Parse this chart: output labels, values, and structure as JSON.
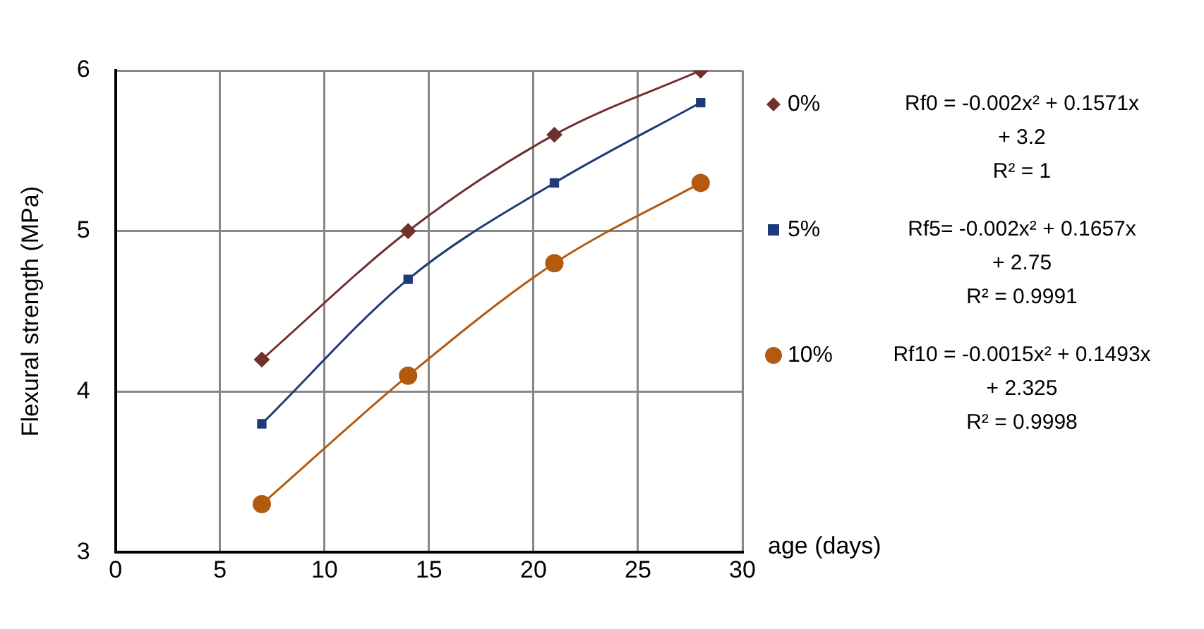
{
  "chart_data": {
    "type": "line",
    "xlabel": "age (days)",
    "ylabel": "Flexural strength (MPa)",
    "xlim": [
      0,
      30
    ],
    "xticks": [
      0,
      5,
      10,
      15,
      20,
      25,
      30
    ],
    "ylim": [
      3,
      6
    ],
    "yticks": [
      3,
      4,
      5,
      6
    ],
    "grid": true,
    "legend": "right",
    "series": [
      {
        "name": "0%",
        "color": "#70302e",
        "marker": "diamond",
        "x": [
          7,
          14,
          21,
          28
        ],
        "values": [
          4.2,
          5.0,
          5.6,
          6.0
        ]
      },
      {
        "name": "5%",
        "color": "#1f3a78",
        "marker": "square",
        "x": [
          7,
          14,
          21,
          28
        ],
        "values": [
          3.8,
          4.7,
          5.3,
          5.8
        ]
      },
      {
        "name": "10%",
        "color": "#b25a10",
        "marker": "circle",
        "x": [
          7,
          14,
          21,
          28
        ],
        "values": [
          3.3,
          4.1,
          4.8,
          5.3
        ]
      }
    ],
    "annotations": [
      "Rf0 = -0.002x² + 0.1571x + 3.2",
      "R² = 1",
      "Rf5= -0.002x² + 0.1657x + 2.75",
      "R² = 0.9991",
      "Rf10 = -0.0015x² + 0.1493x + 2.325",
      "R² = 0.9998"
    ]
  }
}
